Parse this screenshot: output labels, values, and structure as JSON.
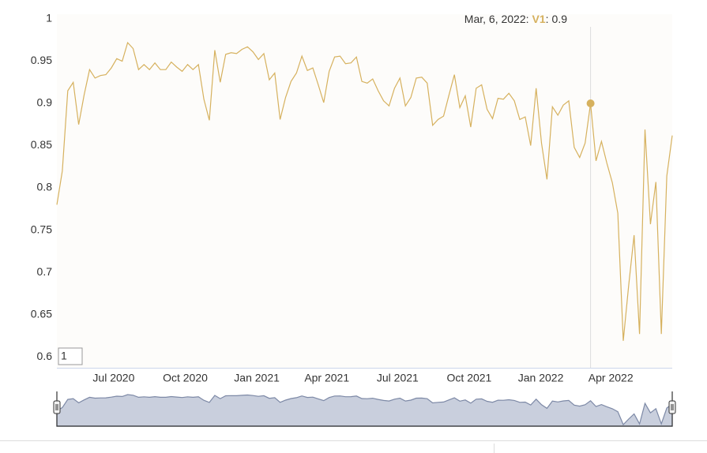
{
  "chart_data": {
    "type": "line",
    "x": [
      "2020-04-19",
      "2020-04-26",
      "2020-05-03",
      "2020-05-10",
      "2020-05-17",
      "2020-05-24",
      "2020-05-31",
      "2020-06-07",
      "2020-06-14",
      "2020-06-21",
      "2020-06-28",
      "2020-07-05",
      "2020-07-12",
      "2020-07-19",
      "2020-07-26",
      "2020-08-02",
      "2020-08-09",
      "2020-08-16",
      "2020-08-23",
      "2020-08-30",
      "2020-09-06",
      "2020-09-13",
      "2020-09-20",
      "2020-09-27",
      "2020-10-04",
      "2020-10-11",
      "2020-10-18",
      "2020-10-25",
      "2020-11-01",
      "2020-11-08",
      "2020-11-15",
      "2020-11-22",
      "2020-11-29",
      "2020-12-06",
      "2020-12-13",
      "2020-12-20",
      "2020-12-27",
      "2021-01-03",
      "2021-01-10",
      "2021-01-17",
      "2021-01-24",
      "2021-01-31",
      "2021-02-07",
      "2021-02-14",
      "2021-02-21",
      "2021-02-28",
      "2021-03-07",
      "2021-03-14",
      "2021-03-21",
      "2021-03-28",
      "2021-04-04",
      "2021-04-11",
      "2021-04-18",
      "2021-04-25",
      "2021-05-02",
      "2021-05-09",
      "2021-05-16",
      "2021-05-23",
      "2021-05-30",
      "2021-06-06",
      "2021-06-13",
      "2021-06-20",
      "2021-06-27",
      "2021-07-04",
      "2021-07-11",
      "2021-07-18",
      "2021-07-25",
      "2021-08-01",
      "2021-08-08",
      "2021-08-15",
      "2021-08-22",
      "2021-08-29",
      "2021-09-05",
      "2021-09-12",
      "2021-09-19",
      "2021-09-26",
      "2021-10-03",
      "2021-10-10",
      "2021-10-17",
      "2021-10-24",
      "2021-10-31",
      "2021-11-07",
      "2021-11-14",
      "2021-11-21",
      "2021-11-28",
      "2021-12-05",
      "2021-12-12",
      "2021-12-19",
      "2021-12-26",
      "2022-01-02",
      "2022-01-09",
      "2022-01-16",
      "2022-01-23",
      "2022-01-30",
      "2022-02-06",
      "2022-02-13",
      "2022-02-20",
      "2022-02-27",
      "2022-03-06",
      "2022-03-13",
      "2022-03-20",
      "2022-03-27",
      "2022-04-03",
      "2022-04-10",
      "2022-04-17",
      "2022-04-24",
      "2022-05-01",
      "2022-05-08",
      "2022-05-15",
      "2022-05-22",
      "2022-05-29",
      "2022-06-05",
      "2022-06-12",
      "2022-06-19"
    ],
    "series": [
      {
        "name": "V1",
        "color": "#d6b15e",
        "values": [
          0.78,
          0.82,
          0.915,
          0.925,
          0.875,
          0.91,
          0.94,
          0.93,
          0.933,
          0.934,
          0.942,
          0.953,
          0.95,
          0.972,
          0.965,
          0.94,
          0.946,
          0.94,
          0.948,
          0.94,
          0.94,
          0.949,
          0.943,
          0.938,
          0.946,
          0.94,
          0.946,
          0.905,
          0.88,
          0.963,
          0.925,
          0.958,
          0.96,
          0.959,
          0.964,
          0.967,
          0.961,
          0.952,
          0.959,
          0.928,
          0.936,
          0.881,
          0.907,
          0.926,
          0.936,
          0.956,
          0.939,
          0.942,
          0.922,
          0.901,
          0.938,
          0.955,
          0.956,
          0.947,
          0.948,
          0.955,
          0.926,
          0.924,
          0.929,
          0.915,
          0.903,
          0.897,
          0.918,
          0.93,
          0.897,
          0.907,
          0.93,
          0.931,
          0.924,
          0.874,
          0.881,
          0.885,
          0.91,
          0.934,
          0.895,
          0.909,
          0.872,
          0.918,
          0.922,
          0.893,
          0.882,
          0.906,
          0.905,
          0.912,
          0.903,
          0.881,
          0.884,
          0.85,
          0.918,
          0.853,
          0.81,
          0.896,
          0.886,
          0.898,
          0.903,
          0.848,
          0.836,
          0.853,
          0.9,
          0.832,
          0.855,
          0.829,
          0.806,
          0.77,
          0.619,
          0.684,
          0.744,
          0.627,
          0.869,
          0.757,
          0.807,
          0.627,
          0.814,
          0.862
        ]
      }
    ],
    "xlim": [
      "2020-04-19",
      "2022-06-19"
    ],
    "xticks": [
      {
        "value": "2020-07-01",
        "label": "Jul 2020"
      },
      {
        "value": "2020-10-01",
        "label": "Oct 2020"
      },
      {
        "value": "2021-01-01",
        "label": "Jan 2021"
      },
      {
        "value": "2021-04-01",
        "label": "Apr 2021"
      },
      {
        "value": "2021-07-01",
        "label": "Jul 2021"
      },
      {
        "value": "2021-10-01",
        "label": "Oct 2021"
      },
      {
        "value": "2022-01-01",
        "label": "Jan 2022"
      },
      {
        "value": "2022-04-01",
        "label": "Apr 2022"
      }
    ],
    "ylim": [
      0.587,
      1
    ],
    "yticks": [
      1,
      0.95,
      0.9,
      0.85,
      0.8,
      0.75,
      0.7,
      0.65,
      0.6
    ],
    "grid": false,
    "tooltip": {
      "date": "Mar, 6, 2022",
      "separator": ":",
      "index": 98,
      "value": 0.9
    },
    "range_input": "1"
  }
}
